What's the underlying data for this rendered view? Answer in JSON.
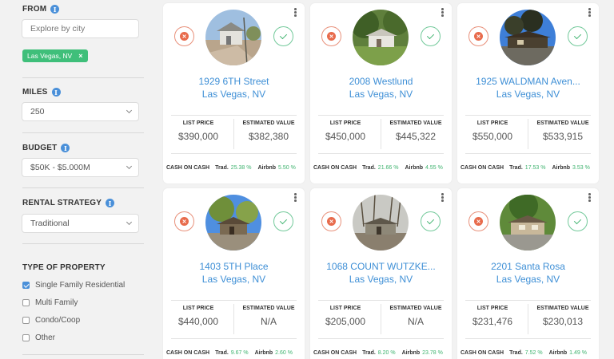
{
  "sidebar": {
    "from": {
      "label": "FROM",
      "placeholder": "Explore by city",
      "tag": "Las Vegas, NV",
      "tag_remove": "×"
    },
    "miles": {
      "label": "MILES",
      "value": "250"
    },
    "budget": {
      "label": "BUDGET",
      "value": "$50K - $5.000M"
    },
    "rental_strategy": {
      "label": "RENTAL STRATEGY",
      "value": "Traditional"
    },
    "property_type": {
      "label": "TYPE OF PROPERTY",
      "options": [
        {
          "label": "Single Family Residential",
          "checked": true
        },
        {
          "label": "Multi Family",
          "checked": false
        },
        {
          "label": "Condo/Coop",
          "checked": false
        },
        {
          "label": "Other",
          "checked": false
        }
      ]
    },
    "info_icon": "i"
  },
  "card_labels": {
    "list_price": "LIST PRICE",
    "estimated_value": "ESTIMATED VALUE",
    "cash_on_cash": "CASH ON CASH",
    "trad": "Trad.",
    "airbnb": "Airbnb"
  },
  "icons": {
    "reject": "x-icon",
    "accept": "check-icon",
    "menu": "kebab-menu-icon"
  },
  "colors": {
    "link": "#3e8fd6",
    "positive": "#3fb36f",
    "reject": "#e86b4c",
    "tag": "#3fbf7a",
    "info": "#4a90d9"
  },
  "properties": [
    {
      "street": "1929 6TH Street",
      "city": "Las Vegas, NV",
      "list_price": "$390,000",
      "estimated_value": "$382,380",
      "trad": "25.38 %",
      "airbnb": "5.50 %"
    },
    {
      "street": "2008 Westlund",
      "city": "Las Vegas, NV",
      "list_price": "$450,000",
      "estimated_value": "$445,322",
      "trad": "21.66 %",
      "airbnb": "4.55 %"
    },
    {
      "street": "1925 WALDMAN Aven...",
      "city": "Las Vegas, NV",
      "list_price": "$550,000",
      "estimated_value": "$533,915",
      "trad": "17.53 %",
      "airbnb": "3.53 %"
    },
    {
      "street": "1403 5TH Place",
      "city": "Las Vegas, NV",
      "list_price": "$440,000",
      "estimated_value": "N/A",
      "trad": "9.67 %",
      "airbnb": "2.60 %"
    },
    {
      "street": "1068 COUNT WUTZKE...",
      "city": "Las Vegas, NV",
      "list_price": "$205,000",
      "estimated_value": "N/A",
      "trad": "8.20 %",
      "airbnb": "23.78 %"
    },
    {
      "street": "2201 Santa Rosa",
      "city": "Las Vegas, NV",
      "list_price": "$231,476",
      "estimated_value": "$230,013",
      "trad": "7.52 %",
      "airbnb": "1.49 %"
    }
  ]
}
